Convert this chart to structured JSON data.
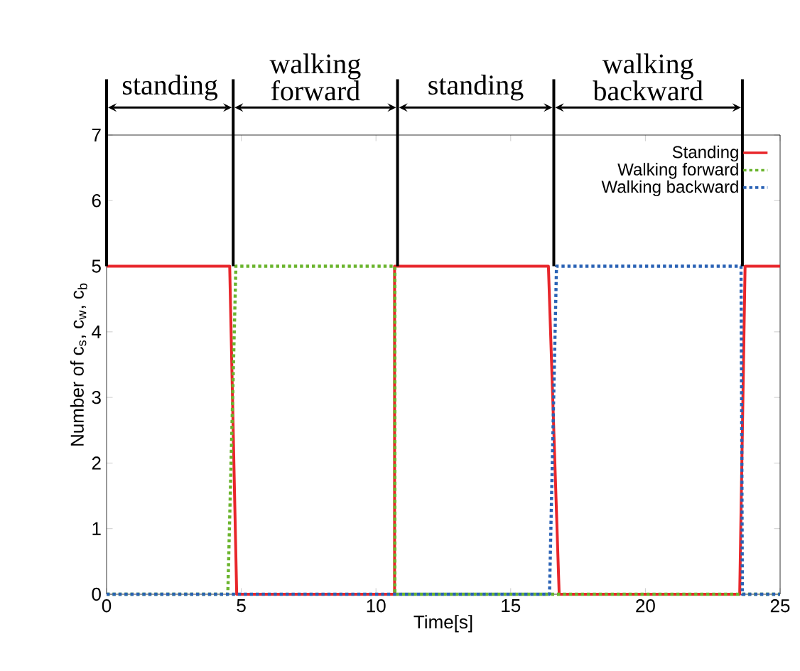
{
  "chart_data": {
    "type": "line",
    "xlabel": "Time[s]",
    "ylabel": "Number of c$_{s}$, c$_{w}$, c$_{b}$",
    "xlim": [
      0,
      25
    ],
    "xticks": [
      0,
      5,
      10,
      15,
      20,
      25
    ],
    "ylim": [
      0,
      7
    ],
    "yticks": [
      0,
      1,
      2,
      3,
      4,
      5,
      6,
      7
    ],
    "legend": "top right",
    "marker": "none",
    "grid": false,
    "series": [
      {
        "name": "Standing",
        "color": "#e8262b",
        "line_style": "solid",
        "x": [
          0,
          4.57,
          4.83,
          10.69,
          10.69,
          16.4,
          16.8,
          23.5,
          23.7,
          25
        ],
        "values": [
          5,
          5,
          0,
          0,
          5,
          5,
          0,
          0,
          5,
          5
        ]
      },
      {
        "name": "Walking forward",
        "color": "#6ab42d",
        "line_style": "dotted",
        "x": [
          0,
          4.5,
          4.8,
          10.7,
          10.7,
          25
        ],
        "values": [
          0,
          0,
          5,
          5,
          0,
          0
        ]
      },
      {
        "name": "Walking backward",
        "color": "#2a62b5",
        "line_style": "dotted",
        "x": [
          0,
          16.44,
          16.7,
          23.55,
          23.6,
          25
        ],
        "values": [
          0,
          0,
          5,
          5,
          0,
          0
        ]
      }
    ],
    "ref_lines": [
      {
        "axis": "x",
        "value": 0,
        "color": "#000000"
      },
      {
        "axis": "x",
        "value": 4.7,
        "color": "#000000"
      },
      {
        "axis": "x",
        "value": 10.8,
        "color": "#000000"
      },
      {
        "axis": "x",
        "value": 16.6,
        "color": "#000000"
      },
      {
        "axis": "x",
        "value": 23.6,
        "color": "#000000"
      }
    ],
    "annotations": [
      "standing",
      "walking forward",
      "standing",
      "walking backward"
    ]
  }
}
